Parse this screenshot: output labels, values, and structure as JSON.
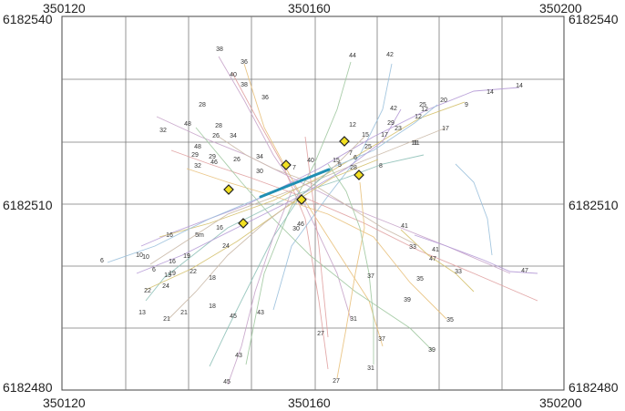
{
  "axes": {
    "x_left": "350120",
    "x_mid": "350160",
    "x_right": "350200",
    "y_top": "6182540",
    "y_mid": "6182510",
    "y_bottom": "6182480"
  },
  "colors": {
    "grid": "#7a7a7a",
    "frame": "#444444",
    "highlight_line": "#1f8fb3",
    "marker_fill": "#f2e022",
    "marker_stroke": "#222222",
    "track_palette": [
      "#c7a3c9",
      "#e0a0a0",
      "#e8c07a",
      "#a0c8a0",
      "#9ac0dc",
      "#b59ad6",
      "#d4c06a",
      "#c9b8a6",
      "#8fc1b8"
    ]
  },
  "track_labels": [
    "38",
    "36",
    "40",
    "38",
    "36",
    "44",
    "42",
    "14",
    "14",
    "20",
    "25",
    "9",
    "12",
    "42",
    "17",
    "29",
    "23",
    "12",
    "15",
    "17",
    "11",
    "12",
    "25",
    "32",
    "48",
    "28",
    "28",
    "26",
    "34",
    "48",
    "29",
    "29",
    "32",
    "46",
    "26",
    "34",
    "30",
    "7",
    "40",
    "7",
    "6",
    "15",
    "5",
    "28",
    "8",
    "11",
    "41",
    "33",
    "41",
    "47",
    "47",
    "33",
    "35",
    "37",
    "39",
    "35",
    "5m",
    "16",
    "24",
    "16",
    "6",
    "10",
    "10",
    "16",
    "19",
    "13",
    "19",
    "22",
    "18",
    "6",
    "22",
    "24",
    "18",
    "13",
    "21",
    "21",
    "45",
    "43",
    "46",
    "30",
    "31",
    "37",
    "39",
    "27",
    "31",
    "43",
    "45",
    "27"
  ],
  "markers": [
    "marker-1",
    "marker-2",
    "marker-3",
    "marker-4",
    "marker-5",
    "marker-6",
    "marker-7"
  ]
}
